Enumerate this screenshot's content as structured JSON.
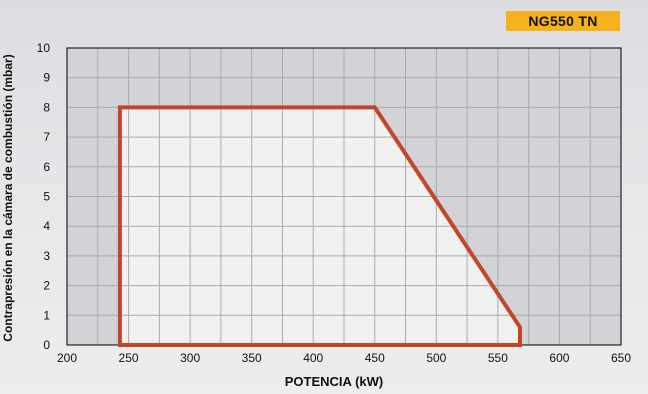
{
  "chart_data": {
    "type": "area",
    "title": "NG550 TN",
    "xlabel": "POTENCIA (kW)",
    "ylabel": "Contrapresión en la cámara de combustión (mbar)",
    "xlim": [
      200,
      650
    ],
    "ylim": [
      0,
      10
    ],
    "xticks": [
      200,
      250,
      300,
      350,
      400,
      450,
      500,
      550,
      600,
      650
    ],
    "yticks": [
      0,
      1,
      2,
      3,
      4,
      5,
      6,
      7,
      8,
      9,
      10
    ],
    "grid": true,
    "series": [
      {
        "x": [
          243,
          243,
          450,
          568,
          568,
          243
        ],
        "y": [
          0,
          8,
          8,
          0.6,
          0,
          0
        ],
        "line_color": "#c2462a",
        "fill_color": "#f1f1f2"
      }
    ],
    "colors": {
      "grid": "#aaaaaa",
      "plot_bg": "#d2d3d6",
      "badge": "#f5b21e"
    }
  }
}
